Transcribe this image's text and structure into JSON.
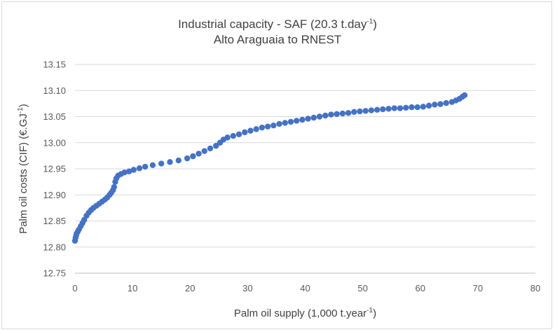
{
  "chart_data": {
    "type": "scatter",
    "title_line1_main": "Industrial capacity - SAF (20.3 t.day",
    "title_line1_sup": "-1",
    "title_line1_end": ")",
    "title_line2": "Alto Araguaia to RNEST",
    "xlabel_main": "Palm oil supply (1,000 t.year",
    "xlabel_sup": "-1",
    "xlabel_end": ")",
    "ylabel_main": "Palm oil costs (CIF) (€.GJ",
    "ylabel_sup": "-1",
    "ylabel_end": ")",
    "xlim": [
      0,
      80
    ],
    "ylim": [
      12.75,
      13.15
    ],
    "x_ticks": [
      "0",
      "10",
      "20",
      "30",
      "40",
      "50",
      "60",
      "70",
      "80"
    ],
    "y_ticks": [
      "12.75",
      "12.80",
      "12.85",
      "12.90",
      "12.95",
      "13.00",
      "13.05",
      "13.10",
      "13.15"
    ],
    "grid": "horizontal",
    "series_color": "#4472c4",
    "x": [
      0,
      0.1,
      0.2,
      0.3,
      0.5,
      0.7,
      1.0,
      1.3,
      1.6,
      2.0,
      2.4,
      2.8,
      3.2,
      3.7,
      4.2,
      4.7,
      5.2,
      5.6,
      6.0,
      6.3,
      6.6,
      6.8,
      7.0,
      7.2,
      7.5,
      8.0,
      8.6,
      9.4,
      10.2,
      11.2,
      12.2,
      13.5,
      15.0,
      16.5,
      18.0,
      19.5,
      20.5,
      21.5,
      22.5,
      23.5,
      24.5,
      25.2,
      25.8,
      26.5,
      27.5,
      28.5,
      29.5,
      30.5,
      31.5,
      32.5,
      33.5,
      34.5,
      35.5,
      36.5,
      37.5,
      38.5,
      39.5,
      40.5,
      41.5,
      42.5,
      43.5,
      44.5,
      45.5,
      46.5,
      47.5,
      48.5,
      49.5,
      50.5,
      51.5,
      52.5,
      53.5,
      54.5,
      55.5,
      56.5,
      57.5,
      58.5,
      59.5,
      60.5,
      61.5,
      62.5,
      63.5,
      64.5,
      65.5,
      66.2,
      66.8,
      67.3,
      67.7
    ],
    "y": [
      12.812,
      12.818,
      12.822,
      12.826,
      12.83,
      12.834,
      12.84,
      12.846,
      12.852,
      12.86,
      12.866,
      12.871,
      12.875,
      12.879,
      12.883,
      12.887,
      12.891,
      12.895,
      12.9,
      12.904,
      12.909,
      12.915,
      12.925,
      12.932,
      12.937,
      12.94,
      12.943,
      12.945,
      12.948,
      12.951,
      12.954,
      12.957,
      12.96,
      12.963,
      12.966,
      12.97,
      12.974,
      12.979,
      12.984,
      12.989,
      12.994,
      13.0,
      13.006,
      13.01,
      13.013,
      13.016,
      13.02,
      13.023,
      13.026,
      13.029,
      13.031,
      13.033,
      13.036,
      13.038,
      13.04,
      13.042,
      13.044,
      13.046,
      13.048,
      13.05,
      13.052,
      13.054,
      13.055,
      13.056,
      13.057,
      13.059,
      13.06,
      13.061,
      13.062,
      13.063,
      13.064,
      13.065,
      13.066,
      13.066,
      13.067,
      13.068,
      13.068,
      13.069,
      13.071,
      13.073,
      13.074,
      13.076,
      13.078,
      13.081,
      13.084,
      13.088,
      13.091
    ]
  }
}
